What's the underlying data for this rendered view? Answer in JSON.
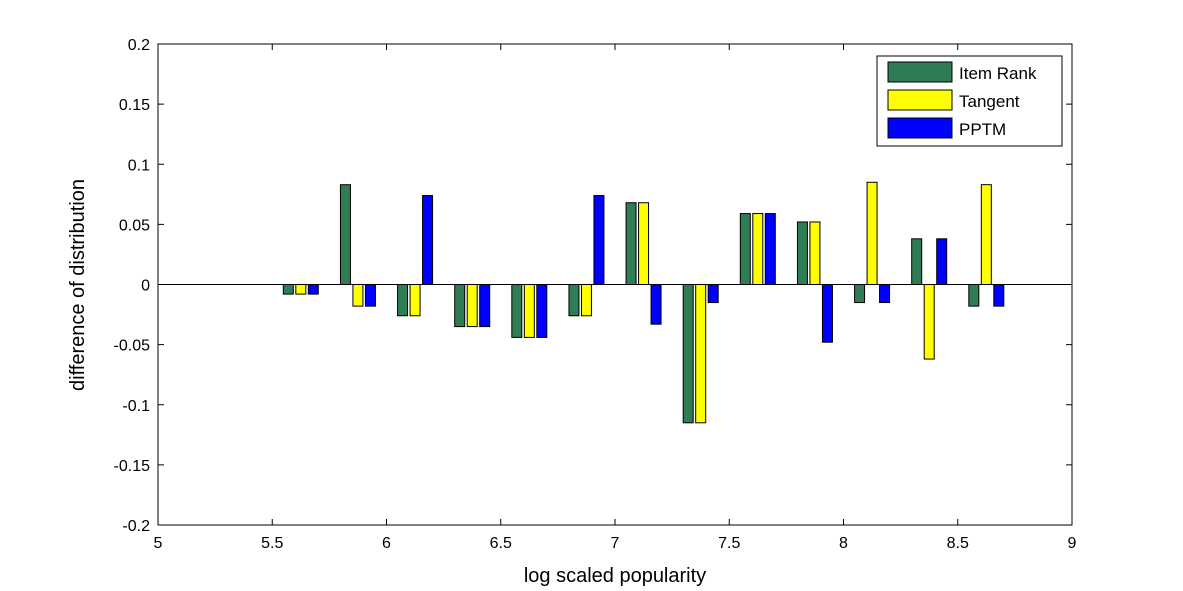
{
  "chart_data": {
    "type": "bar",
    "title": "",
    "xlabel": "log scaled popularity",
    "ylabel": "difference of distribution",
    "xlim": [
      5,
      9
    ],
    "ylim": [
      -0.2,
      0.2
    ],
    "xticks": [
      "5",
      "5.5",
      "6",
      "6.5",
      "7",
      "7.5",
      "8",
      "8.5",
      "9"
    ],
    "yticks": [
      "0.2",
      "0.15",
      "0.1",
      "0.05",
      "0",
      "-0.05",
      "-0.1",
      "-0.15",
      "-0.2"
    ],
    "grid": false,
    "legend_position": "top-right",
    "x": [
      5.625,
      5.875,
      6.125,
      6.375,
      6.625,
      6.875,
      7.125,
      7.375,
      7.625,
      7.875,
      8.125,
      8.375,
      8.625
    ],
    "series": [
      {
        "name": "Item Rank",
        "color": "#2e7d55",
        "values": [
          -0.008,
          0.083,
          -0.026,
          -0.035,
          -0.044,
          -0.026,
          0.068,
          -0.115,
          0.059,
          0.052,
          -0.015,
          0.038,
          -0.018
        ]
      },
      {
        "name": "Tangent",
        "color": "#ffff00",
        "values": [
          -0.008,
          -0.018,
          -0.026,
          -0.035,
          -0.044,
          -0.026,
          0.068,
          -0.115,
          0.059,
          0.052,
          0.085,
          -0.062,
          0.083
        ]
      },
      {
        "name": "PPTM",
        "color": "#0000ff",
        "values": [
          -0.008,
          -0.018,
          0.074,
          -0.035,
          -0.044,
          0.074,
          -0.033,
          -0.015,
          0.059,
          -0.048,
          -0.015,
          0.038,
          -0.018
        ]
      }
    ]
  }
}
